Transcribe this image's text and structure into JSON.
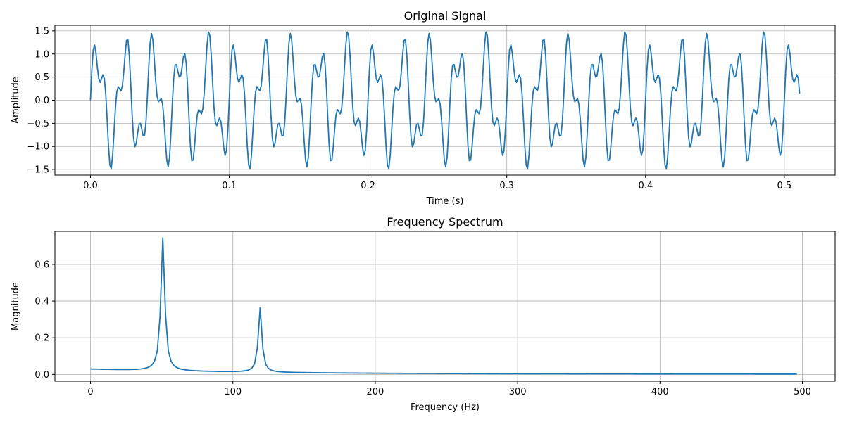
{
  "chart_data": [
    {
      "type": "line",
      "title": "Original Signal",
      "xlabel": "Time (s)",
      "ylabel": "Amplitude",
      "xlim": [
        -0.0256,
        0.5366
      ],
      "ylim": [
        -1.62,
        1.62
      ],
      "xticks": [
        0.0,
        0.1,
        0.2,
        0.3,
        0.4,
        0.5
      ],
      "xtick_labels": [
        "0.0",
        "0.1",
        "0.2",
        "0.3",
        "0.4",
        "0.5"
      ],
      "yticks": [
        -1.5,
        -1.0,
        -0.5,
        0.0,
        0.5,
        1.0,
        1.5
      ],
      "ytick_labels": [
        "−1.5",
        "−1.0",
        "−0.5",
        "0.0",
        "0.5",
        "1.0",
        "1.5"
      ],
      "grid": true,
      "color": "#1f77b4",
      "series": [
        {
          "x_range": [
            0.0,
            0.511
          ],
          "x_step": 0.001,
          "components": [
            {
              "amplitude": 1.0,
              "frequency": 50
            },
            {
              "amplitude": 0.5,
              "frequency": 120
            }
          ]
        }
      ]
    },
    {
      "type": "line",
      "title": "Frequency Spectrum",
      "xlabel": "Frequency (Hz)",
      "ylabel": "Magnitude",
      "xlim": [
        -25,
        523
      ],
      "ylim": [
        -0.037,
        0.78
      ],
      "xticks": [
        0,
        100,
        200,
        300,
        400,
        500
      ],
      "xtick_labels": [
        "0",
        "100",
        "200",
        "300",
        "400",
        "500"
      ],
      "yticks": [
        0.0,
        0.2,
        0.4,
        0.6
      ],
      "ytick_labels": [
        "0.0",
        "0.2",
        "0.4",
        "0.6"
      ],
      "grid": true,
      "color": "#1f77b4",
      "series": [
        {
          "x_range": [
            0,
            498
          ],
          "x_step": 1.953125,
          "peaks": [
            {
              "frequency": 50.8,
              "magnitude": 0.745
            },
            {
              "frequency": 119.1,
              "magnitude": 0.352
            }
          ],
          "baseline_at_0hz": 0.027,
          "baseline_at_500hz": 0.002
        }
      ]
    }
  ]
}
